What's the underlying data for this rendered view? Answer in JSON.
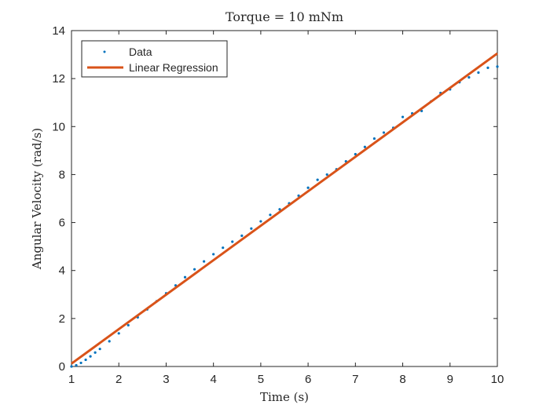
{
  "chart_data": {
    "type": "scatter",
    "title": "Torque = 10 mNm",
    "xlabel": "Time (s)",
    "ylabel": "Angular Velocity (rad/s)",
    "xlim": [
      1,
      10
    ],
    "ylim": [
      0,
      14
    ],
    "xticks": [
      "1",
      "2",
      "3",
      "4",
      "5",
      "6",
      "7",
      "8",
      "9",
      "10"
    ],
    "yticks": [
      "0",
      "2",
      "4",
      "6",
      "8",
      "10",
      "12",
      "14"
    ],
    "grid": false,
    "legend_position": "top-left",
    "series": [
      {
        "name": "Data",
        "style": "points",
        "color": "#0072BD",
        "points": [
          [
            1.0,
            0.0
          ],
          [
            1.1,
            0.05
          ],
          [
            1.2,
            0.15
          ],
          [
            1.3,
            0.28
          ],
          [
            1.4,
            0.42
          ],
          [
            1.5,
            0.58
          ],
          [
            1.6,
            0.73
          ],
          [
            1.8,
            1.05
          ],
          [
            2.0,
            1.38
          ],
          [
            2.2,
            1.72
          ],
          [
            2.4,
            2.05
          ],
          [
            2.6,
            2.38
          ],
          [
            2.8,
            2.72
          ],
          [
            3.0,
            3.05
          ],
          [
            3.2,
            3.38
          ],
          [
            3.4,
            3.72
          ],
          [
            3.6,
            4.05
          ],
          [
            3.8,
            4.38
          ],
          [
            4.0,
            4.68
          ],
          [
            4.2,
            4.95
          ],
          [
            4.4,
            5.2
          ],
          [
            4.6,
            5.45
          ],
          [
            4.8,
            5.75
          ],
          [
            5.0,
            6.05
          ],
          [
            5.2,
            6.32
          ],
          [
            5.4,
            6.55
          ],
          [
            5.6,
            6.8
          ],
          [
            5.8,
            7.12
          ],
          [
            6.0,
            7.45
          ],
          [
            6.2,
            7.78
          ],
          [
            6.4,
            8.0
          ],
          [
            6.6,
            8.22
          ],
          [
            6.8,
            8.55
          ],
          [
            7.0,
            8.85
          ],
          [
            7.2,
            9.15
          ],
          [
            7.4,
            9.5
          ],
          [
            7.6,
            9.75
          ],
          [
            7.8,
            9.95
          ],
          [
            8.0,
            10.4
          ],
          [
            8.2,
            10.55
          ],
          [
            8.4,
            10.65
          ],
          [
            8.6,
            11.05
          ],
          [
            8.8,
            11.4
          ],
          [
            9.0,
            11.55
          ],
          [
            9.2,
            11.85
          ],
          [
            9.4,
            12.05
          ],
          [
            9.6,
            12.25
          ],
          [
            9.8,
            12.45
          ],
          [
            10.0,
            12.5
          ]
        ]
      },
      {
        "name": "Linear Regression",
        "style": "line",
        "color": "#D95319",
        "points": [
          [
            1.0,
            0.12
          ],
          [
            10.0,
            13.05
          ]
        ]
      }
    ]
  }
}
